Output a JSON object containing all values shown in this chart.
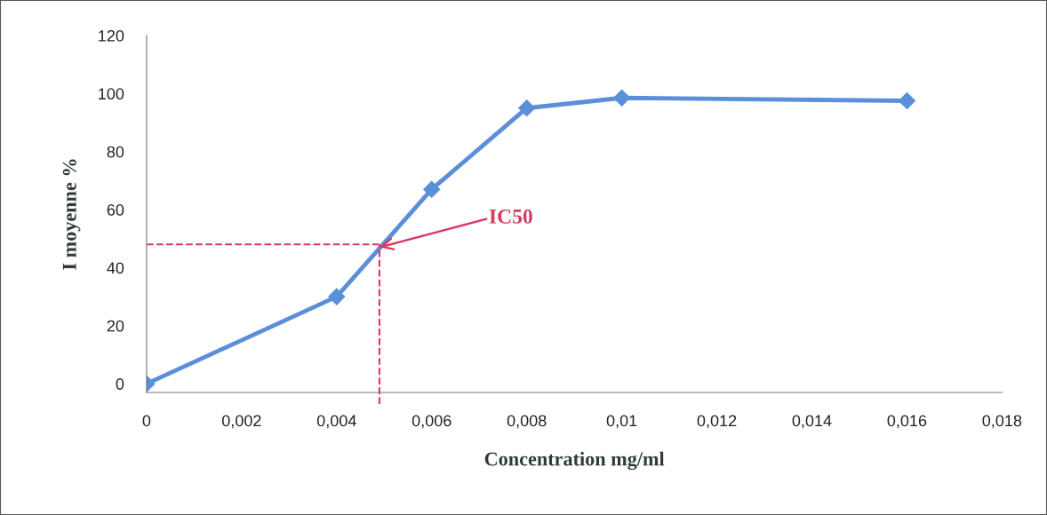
{
  "chart_data": {
    "type": "line",
    "xlabel": "Concentration mg/ml",
    "ylabel": "I moyenne %",
    "x": [
      0,
      0.004,
      0.006,
      0.008,
      0.01,
      0.016
    ],
    "series": [
      {
        "color": "#5b8fd9",
        "values": [
          0,
          30,
          67,
          95,
          98.5,
          97.5
        ]
      }
    ],
    "marker": "diamond",
    "line_style": "solid",
    "grid": false,
    "legend": false,
    "xlim": [
      0,
      0.018
    ],
    "xticks": [
      0,
      {
        "value": 0.002,
        "label": "0,002"
      },
      {
        "value": 0.004,
        "label": "0,004"
      },
      {
        "value": 0.006,
        "label": "0,006"
      },
      {
        "value": 0.008,
        "label": "0,008"
      },
      {
        "value": 0.01,
        "label": "0,01"
      },
      {
        "value": 0.012,
        "label": "0,012"
      },
      {
        "value": 0.014,
        "label": "0,014"
      },
      {
        "value": 0.016,
        "label": "0,016"
      },
      {
        "value": 0.018,
        "label": "0,018"
      }
    ],
    "ylim": [
      -3,
      120
    ],
    "yticks": [
      0,
      20,
      40,
      60,
      80,
      100,
      120
    ],
    "ref_lines": [
      {
        "axis": "y",
        "value": 48,
        "color": "#d63a5e",
        "line_style": "dashed"
      },
      {
        "axis": "x",
        "value": 0.0049,
        "color": "#d63a5e",
        "line_style": "dashed"
      }
    ],
    "annotations": [
      {
        "text": "IC50",
        "x": 0.0049,
        "y": 47
      }
    ]
  }
}
